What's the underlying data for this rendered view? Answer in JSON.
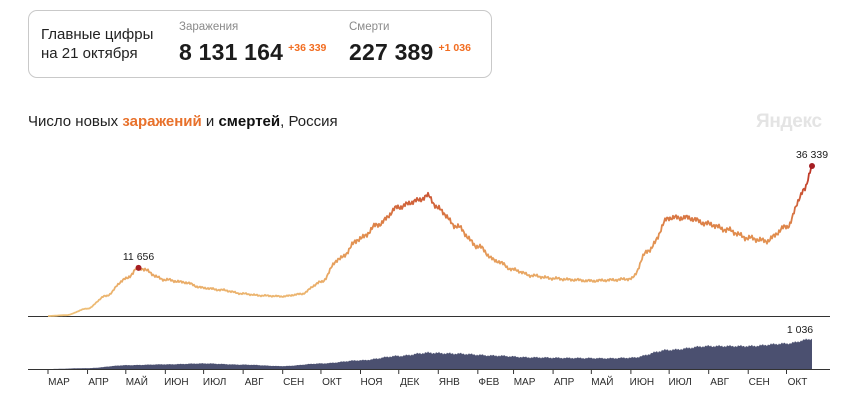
{
  "summary": {
    "label_line1": "Главные цифры",
    "label_line2": "на 21 октября",
    "cases": {
      "title": "Заражения",
      "value": "8 131 164",
      "delta": "+36 339"
    },
    "deaths": {
      "title": "Смерти",
      "value": "227 389",
      "delta": "+1 036"
    }
  },
  "chart_title": {
    "prefix": "Число новых ",
    "cases_word": "заражений",
    "middle": " и ",
    "deaths_word": "смертей",
    "suffix": ", Россия"
  },
  "watermark": "Яндекс",
  "colors": {
    "accent_orange": "#f26d21",
    "cases_low": "#efc27a",
    "cases_mid": "#e08a4c",
    "cases_high": "#b8261f",
    "deaths_fill": "#4b5070",
    "peak_marker": "#a51d22"
  },
  "chart_data": [
    {
      "type": "line",
      "title": "Число новых заражений",
      "x": [
        "2020-03-01",
        "2020-03-15",
        "2020-04-01",
        "2020-04-15",
        "2020-05-01",
        "2020-05-11",
        "2020-06-01",
        "2020-06-15",
        "2020-07-01",
        "2020-07-15",
        "2020-08-01",
        "2020-08-15",
        "2020-09-01",
        "2020-09-15",
        "2020-10-01",
        "2020-10-15",
        "2020-11-01",
        "2020-11-15",
        "2020-12-01",
        "2020-12-15",
        "2020-12-24",
        "2021-01-01",
        "2021-01-15",
        "2021-02-01",
        "2021-02-15",
        "2021-03-01",
        "2021-03-15",
        "2021-04-01",
        "2021-04-15",
        "2021-05-01",
        "2021-05-15",
        "2021-06-01",
        "2021-06-15",
        "2021-07-01",
        "2021-07-15",
        "2021-08-01",
        "2021-08-15",
        "2021-09-01",
        "2021-09-15",
        "2021-10-01",
        "2021-10-15",
        "2021-10-21"
      ],
      "values": [
        0,
        200,
        1800,
        4800,
        9000,
        11656,
        8800,
        8200,
        6800,
        6300,
        5400,
        4950,
        4750,
        5300,
        8200,
        13800,
        18800,
        22200,
        26400,
        27900,
        29100,
        26000,
        21800,
        16900,
        13400,
        11200,
        9800,
        9100,
        8800,
        8500,
        8700,
        9000,
        16000,
        23800,
        23800,
        22300,
        20900,
        18900,
        18200,
        21600,
        30400,
        36339
      ],
      "peak_labels": [
        {
          "x": "2020-05-11",
          "text": "11 656"
        },
        {
          "x": "2021-10-21",
          "text": "36 339"
        }
      ],
      "ylim": [
        0,
        40000
      ]
    },
    {
      "type": "area",
      "title": "Число новых смертей",
      "x": [
        "2020-03-01",
        "2020-04-01",
        "2020-05-01",
        "2020-06-01",
        "2020-07-01",
        "2020-08-01",
        "2020-09-01",
        "2020-10-01",
        "2020-11-01",
        "2020-12-01",
        "2020-12-24",
        "2021-01-15",
        "2021-02-15",
        "2021-03-15",
        "2021-04-15",
        "2021-05-15",
        "2021-06-01",
        "2021-07-01",
        "2021-08-01",
        "2021-09-01",
        "2021-10-01",
        "2021-10-21"
      ],
      "values": [
        0,
        30,
        130,
        160,
        190,
        150,
        100,
        190,
        300,
        450,
        560,
        530,
        460,
        400,
        380,
        370,
        390,
        660,
        790,
        790,
        880,
        1036
      ],
      "peak_labels": [
        {
          "x": "2021-10-21",
          "text": "1 036"
        }
      ],
      "ylim": [
        0,
        1150
      ]
    }
  ],
  "x_ticks": [
    "МАР",
    "АПР",
    "МАЙ",
    "ИЮН",
    "ИЮЛ",
    "АВГ",
    "СЕН",
    "ОКТ",
    "НОЯ",
    "ДЕК",
    "ЯНВ",
    "ФЕВ",
    "МАР",
    "АПР",
    "МАЙ",
    "ИЮН",
    "ИЮЛ",
    "АВГ",
    "СЕН",
    "ОКТ"
  ]
}
